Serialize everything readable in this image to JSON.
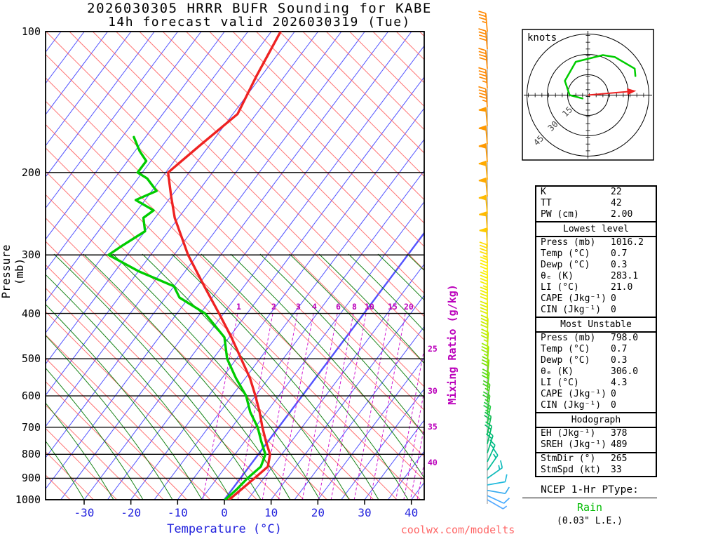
{
  "title_line1": "2026030305 HRRR BUFR Sounding for KABE",
  "title_line2": "14h forecast valid 2026030319 (Tue)",
  "watermark": "coolwx.com/modelts",
  "axes": {
    "pressure_label": "Pressure (mb)",
    "temperature_label": "Temperature (°C)",
    "mixing_ratio_label": "Mixing Ratio (g/kg)",
    "pressure_ticks": [
      100,
      200,
      300,
      400,
      500,
      600,
      700,
      800,
      900,
      1000
    ],
    "temperature_ticks": [
      -30,
      -20,
      -10,
      0,
      10,
      20,
      30,
      40
    ],
    "mixing_ratio_top_labels": [
      1,
      2,
      3,
      4,
      6,
      8,
      10,
      15,
      20
    ],
    "mixing_ratio_right_labels": [
      25,
      30,
      35,
      40
    ]
  },
  "hodograph": {
    "unit_label": "knots",
    "ring_labels": [
      15,
      30,
      45
    ],
    "ring_radii_kt": [
      15,
      30,
      45
    ]
  },
  "indices": {
    "rows_top": [
      [
        "K",
        "22"
      ],
      [
        "TT",
        "42"
      ],
      [
        "PW (cm)",
        "2.00"
      ]
    ],
    "sections": [
      {
        "title": "Lowest level",
        "rows": [
          [
            "Press (mb)",
            "1016.2"
          ],
          [
            "Temp (°C)",
            "0.7"
          ],
          [
            "Dewp (°C)",
            "0.3"
          ],
          [
            "θₑ (K)",
            "283.1"
          ],
          [
            "LI (°C)",
            "21.0"
          ],
          [
            "CAPE (Jkg⁻¹)",
            "0"
          ],
          [
            "CIN (Jkg⁻¹)",
            "0"
          ]
        ]
      },
      {
        "title": "Most Unstable",
        "rows": [
          [
            "Press (mb)",
            "798.0"
          ],
          [
            "Temp (°C)",
            "0.7"
          ],
          [
            "Dewp (°C)",
            "0.3"
          ],
          [
            "θₑ (K)",
            "306.0"
          ],
          [
            "LI (°C)",
            "4.3"
          ],
          [
            "CAPE (Jkg⁻¹)",
            "0"
          ],
          [
            "CIN (Jkg⁻¹)",
            "0"
          ]
        ]
      },
      {
        "title": "Hodograph",
        "rows": [
          [
            "EH (Jkg⁻¹)",
            "378"
          ],
          [
            "SREH (Jkg⁻¹)",
            "489"
          ]
        ]
      },
      {
        "title": "",
        "rows": [
          [
            "StmDir (°)",
            "265"
          ],
          [
            "StmSpd (kt)",
            "33"
          ]
        ]
      }
    ]
  },
  "ptype": {
    "heading": "NCEP 1-Hr PType:",
    "value": "Rain",
    "extra": "(0.03\" L.E.)"
  },
  "colors": {
    "isotherm": "#4040ff",
    "dry_adiabat": "#ff5050",
    "moist_adiabat": "#007700",
    "mixing_ratio": "#cc00cc",
    "temperature_curve": "#ee2222",
    "dewpoint_curve": "#00cc00",
    "axis_blue": "#2222dd",
    "magenta": "#bb00bb",
    "watermark_red": "#ff6666",
    "rain_green": "#00bb00",
    "storm_arrow": "#ee2222",
    "hodo_trace": "#00cc00"
  },
  "chart_data": {
    "type": "skewt_log_p_sounding",
    "title": "2026030305 HRRR BUFR Sounding for KABE — 14h forecast valid 2026030319 (Tue)",
    "pressure_axis_mb": [
      100,
      1000
    ],
    "temperature_axis_c": [
      -38,
      43
    ],
    "temperature_profile_p_t": [
      [
        1016,
        0.7
      ],
      [
        1000,
        1.0
      ],
      [
        950,
        2.0
      ],
      [
        900,
        3.0
      ],
      [
        850,
        4.0
      ],
      [
        800,
        2.5
      ],
      [
        750,
        -0.5
      ],
      [
        700,
        -3.5
      ],
      [
        650,
        -6.5
      ],
      [
        600,
        -10
      ],
      [
        550,
        -14
      ],
      [
        500,
        -19
      ],
      [
        450,
        -24.5
      ],
      [
        400,
        -31
      ],
      [
        350,
        -38.5
      ],
      [
        300,
        -47
      ],
      [
        250,
        -55.8
      ],
      [
        225,
        -60
      ],
      [
        200,
        -64.5
      ],
      [
        175,
        -62
      ],
      [
        150,
        -59
      ],
      [
        125,
        -61
      ],
      [
        100,
        -63
      ]
    ],
    "dewpoint_profile_p_t": [
      [
        1016,
        0.3
      ],
      [
        1000,
        0.2
      ],
      [
        950,
        1.0
      ],
      [
        900,
        1.5
      ],
      [
        850,
        2.5
      ],
      [
        800,
        1.5
      ],
      [
        750,
        -1.5
      ],
      [
        700,
        -4.5
      ],
      [
        650,
        -8.5
      ],
      [
        600,
        -12
      ],
      [
        550,
        -17
      ],
      [
        500,
        -22
      ],
      [
        450,
        -26
      ],
      [
        400,
        -34
      ],
      [
        370,
        -42
      ],
      [
        350,
        -45
      ],
      [
        325,
        -55
      ],
      [
        300,
        -64
      ],
      [
        286,
        -62.5
      ],
      [
        267,
        -60
      ],
      [
        250,
        -62.5
      ],
      [
        241,
        -61.5
      ],
      [
        229,
        -67
      ],
      [
        219,
        -64
      ],
      [
        206,
        -68
      ],
      [
        200,
        -71
      ],
      [
        189,
        -71
      ],
      [
        180,
        -74
      ],
      [
        168,
        -77.5
      ]
    ],
    "wind_barbs": [
      {
        "p": 1000,
        "spd": 5,
        "angle": 120,
        "color": "#55aaff"
      },
      {
        "p": 980,
        "spd": 10,
        "angle": 115,
        "color": "#44aaff"
      },
      {
        "p": 955,
        "spd": 10,
        "angle": 100,
        "color": "#33aaee"
      },
      {
        "p": 930,
        "spd": 10,
        "angle": 80,
        "color": "#22bbdd"
      },
      {
        "p": 900,
        "spd": 15,
        "angle": 55,
        "color": "#11bbbb"
      },
      {
        "p": 865,
        "spd": 15,
        "angle": 35,
        "color": "#00bb99"
      },
      {
        "p": 830,
        "spd": 15,
        "angle": 25,
        "color": "#00bb88"
      },
      {
        "p": 795,
        "spd": 20,
        "angle": 18,
        "color": "#00bb77"
      },
      {
        "p": 760,
        "spd": 20,
        "angle": 14,
        "color": "#00bb66"
      },
      {
        "p": 725,
        "spd": 20,
        "angle": 12,
        "color": "#11bb55"
      },
      {
        "p": 690,
        "spd": 25,
        "angle": 10,
        "color": "#22cc44"
      },
      {
        "p": 655,
        "spd": 25,
        "angle": 8,
        "color": "#33cc33"
      },
      {
        "p": 620,
        "spd": 25,
        "angle": 8,
        "color": "#44cc22"
      },
      {
        "p": 585,
        "spd": 30,
        "angle": 6,
        "color": "#55dd11"
      },
      {
        "p": 550,
        "spd": 30,
        "angle": 5,
        "color": "#77dd00"
      },
      {
        "p": 515,
        "spd": 35,
        "angle": 4,
        "color": "#99ee00"
      },
      {
        "p": 480,
        "spd": 35,
        "angle": 3,
        "color": "#bbee00"
      },
      {
        "p": 448,
        "spd": 40,
        "angle": 2,
        "color": "#ccee00"
      },
      {
        "p": 418,
        "spd": 40,
        "angle": 0,
        "color": "#ddee00"
      },
      {
        "p": 390,
        "spd": 40,
        "angle": 0,
        "color": "#eeee00"
      },
      {
        "p": 362,
        "spd": 45,
        "angle": 0,
        "color": "#f5ee00"
      },
      {
        "p": 336,
        "spd": 45,
        "angle": 0,
        "color": "#ffee00"
      },
      {
        "p": 312,
        "spd": 45,
        "angle": -2,
        "color": "#ffdd00"
      },
      {
        "p": 288,
        "spd": 50,
        "angle": -3,
        "color": "#ffcc00"
      },
      {
        "p": 266,
        "spd": 50,
        "angle": -4,
        "color": "#ffbb00"
      },
      {
        "p": 245,
        "spd": 55,
        "angle": -5,
        "color": "#ffbb00"
      },
      {
        "p": 225,
        "spd": 55,
        "angle": -5,
        "color": "#ffaa00"
      },
      {
        "p": 207,
        "spd": 60,
        "angle": -5,
        "color": "#ffaa00"
      },
      {
        "p": 190,
        "spd": 55,
        "angle": -5,
        "color": "#ff9900"
      },
      {
        "p": 174,
        "spd": 55,
        "angle": -5,
        "color": "#ff9900"
      },
      {
        "p": 159,
        "spd": 50,
        "angle": -5,
        "color": "#ff9900"
      },
      {
        "p": 145,
        "spd": 45,
        "angle": -5,
        "color": "#ff8800"
      },
      {
        "p": 132,
        "spd": 45,
        "angle": -5,
        "color": "#ff8800"
      },
      {
        "p": 120,
        "spd": 40,
        "angle": -5,
        "color": "#ff8800"
      },
      {
        "p": 109,
        "spd": 40,
        "angle": -5,
        "color": "#ff8800"
      },
      {
        "p": 100,
        "spd": 35,
        "angle": -5,
        "color": "#ff8800"
      }
    ],
    "hodograph_trace_uv_kt": [
      [
        35,
        14
      ],
      [
        34.5,
        19.5
      ],
      [
        20,
        28
      ],
      [
        11,
        29.5
      ],
      [
        -9,
        24.5
      ],
      [
        -17,
        10.5
      ],
      [
        -13.5,
        0
      ],
      [
        -4,
        -2.5
      ]
    ],
    "storm_motion": {
      "dir_deg": 265,
      "spd_kt": 33
    }
  }
}
